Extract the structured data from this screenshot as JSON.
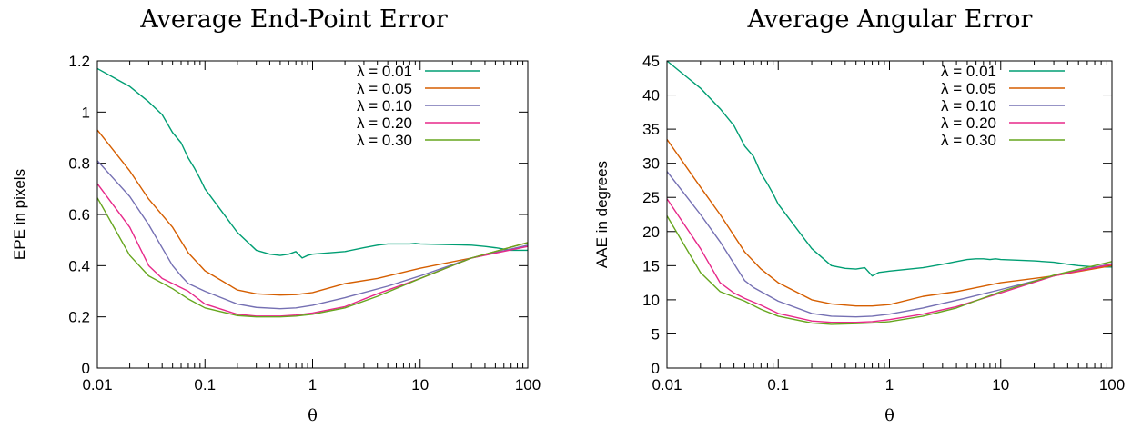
{
  "series_styles": [
    {
      "name": "λ = 0.01",
      "color": "#009e73"
    },
    {
      "name": "λ = 0.05",
      "color": "#d55e00"
    },
    {
      "name": "λ = 0.10",
      "color": "#7570b3"
    },
    {
      "name": "λ = 0.20",
      "color": "#e7298a"
    },
    {
      "name": "λ = 0.30",
      "color": "#66a61e"
    }
  ],
  "chart_data": [
    {
      "type": "line",
      "title": "Average End-Point Error",
      "xlabel": "θ",
      "ylabel": "EPE   in pixels",
      "xscale": "log",
      "xlim": [
        0.01,
        100
      ],
      "ylim": [
        0,
        1.2
      ],
      "xticks": [
        0.01,
        0.1,
        1,
        10,
        100
      ],
      "xtick_labels": [
        "0.01",
        "0.1",
        "1",
        "10",
        "100"
      ],
      "yticks": [
        0,
        0.2,
        0.4,
        0.6,
        0.8,
        1,
        1.2
      ],
      "ytick_labels": [
        "0",
        "0.2",
        "0.4",
        "0.6",
        "0.8",
        "1",
        "1.2"
      ],
      "legend_position": "top-right",
      "series": [
        {
          "name": "λ = 0.01",
          "color": "#009e73",
          "x": [
            0.01,
            0.02,
            0.03,
            0.04,
            0.05,
            0.06,
            0.07,
            0.08,
            0.09,
            0.1,
            0.2,
            0.3,
            0.4,
            0.5,
            0.6,
            0.7,
            0.8,
            0.9,
            1,
            2,
            3,
            4,
            5,
            6,
            7,
            8,
            9,
            10,
            20,
            30,
            40,
            50,
            60,
            70,
            80,
            90,
            100
          ],
          "y": [
            1.17,
            1.1,
            1.04,
            0.99,
            0.92,
            0.88,
            0.82,
            0.78,
            0.74,
            0.7,
            0.53,
            0.46,
            0.445,
            0.44,
            0.445,
            0.455,
            0.43,
            0.44,
            0.445,
            0.455,
            0.47,
            0.48,
            0.485,
            0.485,
            0.485,
            0.485,
            0.487,
            0.485,
            0.482,
            0.48,
            0.475,
            0.47,
            0.465,
            0.46,
            0.46,
            0.46,
            0.46
          ]
        },
        {
          "name": "λ = 0.05",
          "color": "#d55e00",
          "x": [
            0.01,
            0.02,
            0.03,
            0.05,
            0.07,
            0.1,
            0.2,
            0.3,
            0.5,
            0.7,
            1,
            2,
            4,
            10,
            30,
            100
          ],
          "y": [
            0.93,
            0.77,
            0.66,
            0.55,
            0.45,
            0.38,
            0.305,
            0.29,
            0.285,
            0.287,
            0.295,
            0.33,
            0.35,
            0.39,
            0.43,
            0.49
          ]
        },
        {
          "name": "λ = 0.10",
          "color": "#7570b3",
          "x": [
            0.01,
            0.02,
            0.03,
            0.05,
            0.06,
            0.07,
            0.1,
            0.2,
            0.3,
            0.5,
            0.7,
            1,
            2,
            5,
            10,
            30,
            100
          ],
          "y": [
            0.81,
            0.67,
            0.56,
            0.4,
            0.36,
            0.33,
            0.3,
            0.25,
            0.237,
            0.232,
            0.235,
            0.245,
            0.275,
            0.32,
            0.36,
            0.43,
            0.48
          ]
        },
        {
          "name": "λ = 0.20",
          "color": "#e7298a",
          "x": [
            0.01,
            0.02,
            0.03,
            0.04,
            0.05,
            0.07,
            0.1,
            0.2,
            0.3,
            0.5,
            0.7,
            1,
            2,
            4,
            10,
            30,
            100
          ],
          "y": [
            0.72,
            0.55,
            0.4,
            0.35,
            0.33,
            0.3,
            0.25,
            0.21,
            0.203,
            0.203,
            0.207,
            0.215,
            0.24,
            0.29,
            0.35,
            0.43,
            0.475
          ]
        },
        {
          "name": "λ = 0.30",
          "color": "#66a61e",
          "x": [
            0.01,
            0.02,
            0.03,
            0.05,
            0.07,
            0.1,
            0.2,
            0.3,
            0.5,
            0.7,
            1,
            2,
            4,
            10,
            30,
            100
          ],
          "y": [
            0.665,
            0.44,
            0.36,
            0.31,
            0.27,
            0.235,
            0.205,
            0.2,
            0.2,
            0.203,
            0.21,
            0.235,
            0.28,
            0.35,
            0.43,
            0.49
          ]
        }
      ]
    },
    {
      "type": "line",
      "title": "Average Angular Error",
      "xlabel": "θ",
      "ylabel": "AAE   in degrees",
      "xscale": "log",
      "xlim": [
        0.01,
        100
      ],
      "ylim": [
        0,
        45
      ],
      "xticks": [
        0.01,
        0.1,
        1,
        10,
        100
      ],
      "xtick_labels": [
        "0.01",
        "0.1",
        "1",
        "10",
        "100"
      ],
      "yticks": [
        0,
        5,
        10,
        15,
        20,
        25,
        30,
        35,
        40,
        45
      ],
      "ytick_labels": [
        "0",
        "5",
        "10",
        "15",
        "20",
        "25",
        "30",
        "35",
        "40",
        "45"
      ],
      "legend_position": "top-right",
      "series": [
        {
          "name": "λ = 0.01",
          "color": "#009e73",
          "x": [
            0.01,
            0.02,
            0.03,
            0.04,
            0.05,
            0.06,
            0.07,
            0.08,
            0.09,
            0.1,
            0.2,
            0.3,
            0.4,
            0.5,
            0.6,
            0.7,
            0.8,
            0.9,
            1,
            2,
            3,
            4,
            5,
            6,
            7,
            8,
            9,
            10,
            20,
            30,
            40,
            50,
            60,
            70,
            80,
            90,
            100
          ],
          "y": [
            45,
            41,
            38,
            35.5,
            32.5,
            31,
            28.5,
            27,
            25.5,
            24,
            17.5,
            15,
            14.6,
            14.5,
            14.7,
            13.5,
            14,
            14.1,
            14.2,
            14.7,
            15.2,
            15.6,
            15.9,
            16,
            16,
            15.9,
            16,
            15.9,
            15.7,
            15.5,
            15.2,
            15,
            14.9,
            14.8,
            14.8,
            14.8,
            14.8
          ]
        },
        {
          "name": "λ = 0.05",
          "color": "#d55e00",
          "x": [
            0.01,
            0.02,
            0.03,
            0.05,
            0.07,
            0.1,
            0.2,
            0.3,
            0.5,
            0.7,
            1,
            2,
            4,
            10,
            30,
            100
          ],
          "y": [
            33.5,
            26.5,
            22.5,
            17,
            14.5,
            12.5,
            10,
            9.4,
            9.1,
            9.1,
            9.3,
            10.5,
            11.2,
            12.5,
            13.5,
            15
          ]
        },
        {
          "name": "λ = 0.10",
          "color": "#7570b3",
          "x": [
            0.01,
            0.02,
            0.03,
            0.05,
            0.06,
            0.07,
            0.1,
            0.2,
            0.3,
            0.5,
            0.7,
            1,
            2,
            5,
            10,
            30,
            100
          ],
          "y": [
            28.8,
            22.5,
            18.5,
            12.8,
            11.8,
            11.2,
            9.8,
            8,
            7.6,
            7.5,
            7.6,
            7.9,
            8.8,
            10.3,
            11.5,
            13.5,
            15.3
          ]
        },
        {
          "name": "λ = 0.20",
          "color": "#e7298a",
          "x": [
            0.01,
            0.02,
            0.03,
            0.04,
            0.05,
            0.07,
            0.1,
            0.2,
            0.3,
            0.5,
            0.7,
            1,
            2,
            4,
            10,
            30,
            100
          ],
          "y": [
            24.8,
            17.5,
            12.5,
            11,
            10.2,
            9.2,
            8,
            6.9,
            6.7,
            6.7,
            6.8,
            7.1,
            7.9,
            9,
            11,
            13.5,
            15.2
          ]
        },
        {
          "name": "λ = 0.30",
          "color": "#66a61e",
          "x": [
            0.01,
            0.02,
            0.03,
            0.05,
            0.07,
            0.1,
            0.2,
            0.3,
            0.5,
            0.7,
            1,
            2,
            4,
            10,
            30,
            100
          ],
          "y": [
            22.3,
            14,
            11.2,
            9.8,
            8.6,
            7.6,
            6.6,
            6.4,
            6.5,
            6.6,
            6.8,
            7.6,
            8.8,
            11.2,
            13.6,
            15.6
          ]
        }
      ]
    }
  ]
}
